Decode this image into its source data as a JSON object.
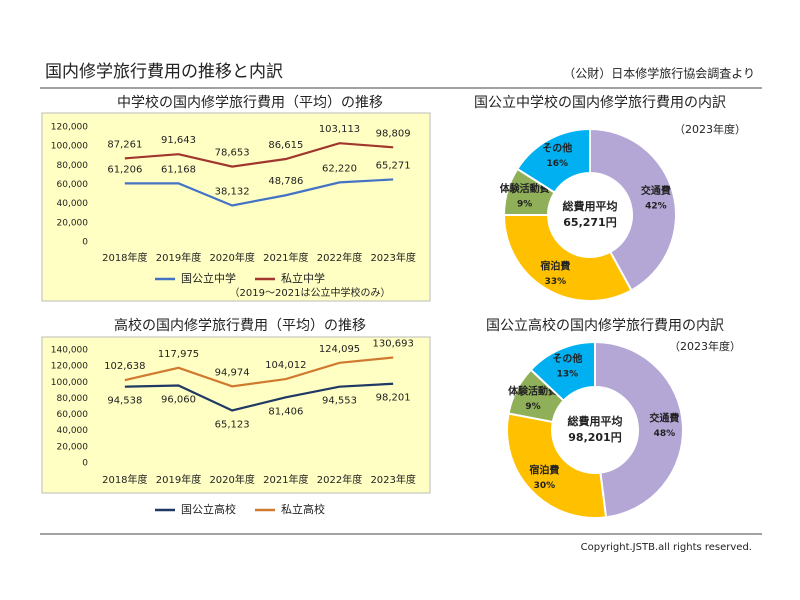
{
  "header": {
    "title": "国内修学旅行費用の推移と内訳",
    "source": "（公財）日本修学旅行協会調査より"
  },
  "footer": "Copyright.JSTB.all rights reserved.",
  "chart_data": [
    {
      "type": "line",
      "title": "中学校の国内修学旅行費用（平均）の推移",
      "categories": [
        "2018年度",
        "2019年度",
        "2020年度",
        "2021年度",
        "2022年度",
        "2023年度"
      ],
      "series": [
        {
          "name": "国公立中学",
          "color": "#4472c4",
          "values": [
            61206,
            61168,
            38132,
            48786,
            62220,
            65271
          ],
          "value_labels": [
            "61,206",
            "61,168",
            "38,132",
            "48,786",
            "62,220",
            "65,271"
          ]
        },
        {
          "name": "私立中学",
          "color": "#a0362e",
          "values": [
            87261,
            91643,
            78653,
            86615,
            103113,
            98809
          ],
          "value_labels": [
            "87,261",
            "91,643",
            "78,653",
            "86,615",
            "103,113",
            "98,809"
          ]
        }
      ],
      "note": "（2019～2021は公立中学校のみ）",
      "ylim": [
        0,
        120000
      ],
      "yticks": [
        0,
        {
          "value": 20000,
          "label": "20,000"
        },
        {
          "value": 40000,
          "label": "40,000"
        },
        {
          "value": 60000,
          "label": "60,000"
        },
        {
          "value": 80000,
          "label": "80,000"
        },
        {
          "value": 100000,
          "label": "100,000"
        },
        {
          "value": 120000,
          "label": "120,000"
        }
      ],
      "background": "#ffffc4"
    },
    {
      "type": "donut",
      "title": "国公立中学校の国内修学旅行費用の内訳",
      "subtitle": "（2023年度）",
      "center_label": [
        "総費用平均",
        "65,271円"
      ],
      "categories": [
        "交通費",
        "宿泊費",
        "体験活動費",
        "その他"
      ],
      "values": [
        42,
        33,
        9,
        16
      ],
      "value_labels": [
        "42%",
        "33%",
        "9%",
        "16%"
      ],
      "colors": [
        "#b4a7d6",
        "#ffc000",
        "#8fb058",
        "#00b0f0"
      ]
    },
    {
      "type": "line",
      "title": "高校の国内修学旅行費用（平均）の推移",
      "categories": [
        "2018年度",
        "2019年度",
        "2020年度",
        "2021年度",
        "2022年度",
        "2023年度"
      ],
      "series": [
        {
          "name": "国公立高校",
          "color": "#1f3864",
          "values": [
            94538,
            96060,
            65123,
            81406,
            94553,
            98201
          ],
          "value_labels": [
            "94,538",
            "96,060",
            "65,123",
            "81,406",
            "94,553",
            "98,201"
          ]
        },
        {
          "name": "私立高校",
          "color": "#d07a30",
          "values": [
            102638,
            117975,
            94974,
            104012,
            124095,
            130693
          ],
          "value_labels": [
            "102,638",
            "117,975",
            "94,974",
            "104,012",
            "124,095",
            "130,693"
          ]
        }
      ],
      "ylim": [
        0,
        140000
      ],
      "yticks": [
        0,
        {
          "value": 20000,
          "label": "20,000"
        },
        {
          "value": 40000,
          "label": "40,000"
        },
        {
          "value": 60000,
          "label": "60,000"
        },
        {
          "value": 80000,
          "label": "80,000"
        },
        {
          "value": 100000,
          "label": "100,000"
        },
        {
          "value": 120000,
          "label": "120,000"
        },
        {
          "value": 140000,
          "label": "140,000"
        }
      ],
      "background": "#ffffc4"
    },
    {
      "type": "donut",
      "title": "国公立高校の国内修学旅行費用の内訳",
      "subtitle": "（2023年度）",
      "center_label": [
        "総費用平均",
        "98,201円"
      ],
      "categories": [
        "交通費",
        "宿泊費",
        "体験活動費",
        "その他"
      ],
      "values": [
        48,
        30,
        9,
        13
      ],
      "value_labels": [
        "48%",
        "30%",
        "9%",
        "13%"
      ],
      "colors": [
        "#b4a7d6",
        "#ffc000",
        "#8fb058",
        "#00b0f0"
      ]
    }
  ]
}
